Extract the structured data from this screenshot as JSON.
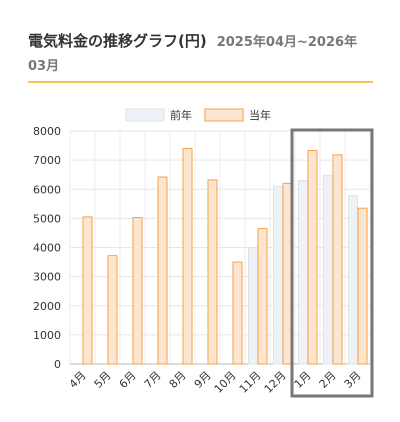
{
  "header": {
    "title": "電気料金の推移グラフ(円)",
    "period": "2025年04月~2026年03月"
  },
  "colors": {
    "divider": "#f6c350",
    "prev_fill": "#eef1f5",
    "prev_stroke": "#dfe3e8",
    "curr_fill": "#fde6cf",
    "curr_stroke": "#f7a24a",
    "highlight_box": "#777777"
  },
  "chart_data": {
    "type": "bar",
    "categories": [
      "4月",
      "5月",
      "6月",
      "7月",
      "8月",
      "9月",
      "10月",
      "11月",
      "12月",
      "1月",
      "2月",
      "3月"
    ],
    "series": [
      {
        "name": "前年",
        "values": [
          null,
          null,
          null,
          null,
          null,
          null,
          null,
          4000,
          6100,
          6300,
          6480,
          5780
        ]
      },
      {
        "name": "当年",
        "values": [
          5050,
          3720,
          5030,
          6420,
          7400,
          6320,
          3500,
          4650,
          6200,
          7330,
          7180,
          5350
        ]
      }
    ],
    "ylim": [
      0,
      8000
    ],
    "yticks": [
      "0",
      "1000",
      "2000",
      "3000",
      "4000",
      "5000",
      "6000",
      "7000",
      "8000"
    ],
    "grid": true,
    "legend": "top-center",
    "highlighted_categories": [
      "1月",
      "2月",
      "3月"
    ]
  }
}
